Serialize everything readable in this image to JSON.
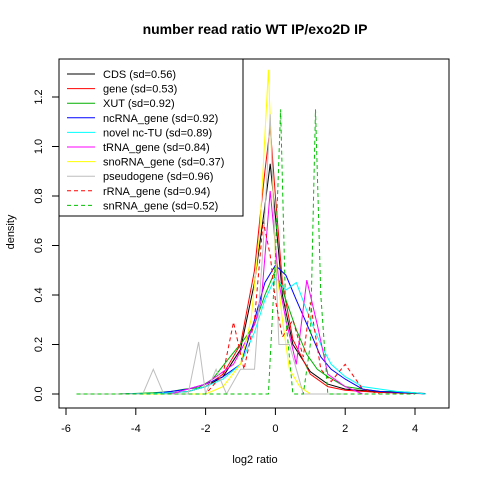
{
  "chart_data": {
    "type": "line",
    "title": "number read ratio WT IP/exo2D IP",
    "xlabel": "log2 ratio",
    "ylabel": "density",
    "xlim": [
      -6,
      4.6
    ],
    "ylim": [
      0,
      1.32
    ],
    "xticks": [
      -6,
      -4,
      -2,
      0,
      2,
      4
    ],
    "xtick_labels": [
      "-6",
      "-4",
      "-2",
      "0",
      "2",
      "4"
    ],
    "yticks": [
      0.0,
      0.2,
      0.4,
      0.6,
      0.8,
      1.0,
      1.2
    ],
    "ytick_labels": [
      "0.0",
      "0.2",
      "0.4",
      "0.6",
      "0.8",
      "1.0",
      "1.2"
    ],
    "grid": false,
    "legend_position": "top-left",
    "series": [
      {
        "name": "CDS (sd=0.56)",
        "color": "#000000",
        "dash": "solid",
        "x": [
          -5.7,
          -4.5,
          -3.5,
          -3.0,
          -2.5,
          -2.0,
          -1.5,
          -1.0,
          -0.6,
          -0.3,
          -0.15,
          0.0,
          0.2,
          0.5,
          1.0,
          1.5,
          2.0,
          3.0,
          4.0,
          4.3
        ],
        "y": [
          0.0,
          0.0,
          0.002,
          0.005,
          0.01,
          0.03,
          0.07,
          0.18,
          0.45,
          0.76,
          0.93,
          0.72,
          0.4,
          0.2,
          0.09,
          0.04,
          0.02,
          0.008,
          0.004,
          0.002
        ]
      },
      {
        "name": "gene (sd=0.53)",
        "color": "#ff0000",
        "dash": "solid",
        "x": [
          -5.7,
          -4.5,
          -3.5,
          -3.0,
          -2.5,
          -2.0,
          -1.5,
          -1.0,
          -0.6,
          -0.3,
          -0.15,
          0.0,
          0.2,
          0.5,
          1.0,
          1.5,
          2.0,
          3.0,
          4.0,
          4.3
        ],
        "y": [
          0.0,
          0.0,
          0.002,
          0.005,
          0.01,
          0.03,
          0.08,
          0.2,
          0.5,
          0.9,
          1.08,
          0.8,
          0.45,
          0.22,
          0.08,
          0.03,
          0.015,
          0.006,
          0.002,
          0.001
        ]
      },
      {
        "name": "XUT (sd=0.92)",
        "color": "#00b000",
        "dash": "solid",
        "x": [
          -5.7,
          -4.5,
          -3.5,
          -3.0,
          -2.6,
          -2.2,
          -1.8,
          -1.3,
          -0.9,
          -0.6,
          -0.3,
          0.0,
          0.3,
          0.6,
          0.9,
          1.2,
          1.5,
          2.0,
          2.5,
          3.0,
          3.5,
          4.0,
          4.3
        ],
        "y": [
          0.0,
          0.0,
          0.005,
          0.01,
          0.02,
          0.025,
          0.06,
          0.15,
          0.22,
          0.28,
          0.4,
          0.5,
          0.38,
          0.26,
          0.16,
          0.1,
          0.07,
          0.03,
          0.02,
          0.01,
          0.01,
          0.005,
          0.0
        ]
      },
      {
        "name": "ncRNA_gene (sd=0.92)",
        "color": "#0000ff",
        "dash": "solid",
        "x": [
          -5.7,
          -4.5,
          -3.5,
          -3.0,
          -2.5,
          -2.0,
          -1.5,
          -1.0,
          -0.6,
          -0.3,
          0.0,
          0.3,
          0.6,
          1.0,
          1.3,
          1.6,
          2.0,
          2.5,
          3.0,
          3.5,
          4.0,
          4.3
        ],
        "y": [
          0.0,
          0.0,
          0.002,
          0.01,
          0.02,
          0.04,
          0.07,
          0.12,
          0.3,
          0.45,
          0.52,
          0.48,
          0.38,
          0.25,
          0.15,
          0.1,
          0.06,
          0.02,
          0.01,
          0.006,
          0.004,
          0.0
        ]
      },
      {
        "name": "novel nc-TU (sd=0.89)",
        "color": "#00ffff",
        "dash": "solid",
        "x": [
          -5.7,
          -4.5,
          -3.5,
          -3.0,
          -2.5,
          -2.0,
          -1.5,
          -1.0,
          -0.6,
          -0.3,
          0.0,
          0.3,
          0.6,
          1.0,
          1.3,
          1.6,
          2.0,
          2.5,
          3.0,
          3.5,
          4.0,
          4.3
        ],
        "y": [
          0.0,
          0.0,
          0.002,
          0.005,
          0.01,
          0.03,
          0.06,
          0.12,
          0.25,
          0.38,
          0.47,
          0.42,
          0.45,
          0.3,
          0.2,
          0.12,
          0.07,
          0.03,
          0.02,
          0.01,
          0.005,
          0.0
        ]
      },
      {
        "name": "tRNA_gene (sd=0.84)",
        "color": "#ff00ff",
        "dash": "solid",
        "x": [
          -5.7,
          -3.0,
          -2.0,
          -1.6,
          -1.2,
          -0.9,
          -0.6,
          -0.4,
          -0.15,
          0.1,
          0.3,
          0.6,
          0.9,
          1.2,
          1.5,
          2.0,
          2.5
        ],
        "y": [
          0.0,
          0.0,
          0.04,
          0.08,
          0.12,
          0.2,
          0.28,
          0.38,
          0.82,
          0.45,
          0.3,
          0.12,
          0.46,
          0.28,
          0.08,
          0.03,
          0.0
        ]
      },
      {
        "name": "snoRNA_gene (sd=0.37)",
        "color": "#ffff00",
        "dash": "solid",
        "x": [
          -5.7,
          -2.0,
          -1.5,
          -1.0,
          -0.7,
          -0.45,
          -0.2,
          0.0,
          0.2,
          0.4,
          0.7,
          1.0,
          2.0
        ],
        "y": [
          0.0,
          0.0,
          0.03,
          0.12,
          0.3,
          0.65,
          1.31,
          0.55,
          0.3,
          0.1,
          0.03,
          0.0,
          0.0
        ]
      },
      {
        "name": "pseudogene (sd=0.96)",
        "color": "#bebebe",
        "dash": "solid",
        "x": [
          -5.7,
          -3.8,
          -3.5,
          -3.2,
          -2.8,
          -2.5,
          -2.2,
          -2.0,
          -1.7,
          -1.4,
          -1.0,
          -0.6,
          -0.35,
          -0.15,
          0.1,
          0.4,
          0.8,
          1.2,
          1.5,
          2.0
        ],
        "y": [
          0.0,
          0.0,
          0.1,
          0.0,
          0.0,
          0.0,
          0.21,
          0.0,
          0.1,
          0.0,
          0.1,
          0.1,
          0.6,
          1.13,
          0.2,
          0.2,
          0.0,
          0.0,
          0.0,
          0.0
        ]
      },
      {
        "name": "rRNA_gene (sd=0.94)",
        "color": "#ff0000",
        "dash": "dashed",
        "x": [
          -5.7,
          -2.0,
          -1.5,
          -1.2,
          -0.9,
          -0.6,
          -0.35,
          -0.15,
          0.0,
          0.2,
          0.5,
          0.8,
          1.0,
          1.3,
          1.6,
          2.0,
          2.5,
          3.0
        ],
        "y": [
          0.0,
          0.0,
          0.08,
          0.29,
          0.1,
          0.3,
          0.7,
          0.56,
          0.38,
          0.23,
          0.3,
          0.15,
          0.37,
          0.1,
          0.05,
          0.12,
          0.02,
          0.0
        ]
      },
      {
        "name": "snRNA_gene (sd=0.52)",
        "color": "#00c000",
        "dash": "dashed",
        "x": [
          -5.7,
          -0.3,
          -0.2,
          0.0,
          0.15,
          0.3,
          0.5,
          0.8,
          1.0,
          1.15,
          1.3,
          1.5,
          1.7,
          4.0
        ],
        "y": [
          0.0,
          0.0,
          0.0,
          0.55,
          1.15,
          0.3,
          0.0,
          0.0,
          0.2,
          1.15,
          0.4,
          0.0,
          0.0,
          0.0
        ]
      }
    ]
  }
}
